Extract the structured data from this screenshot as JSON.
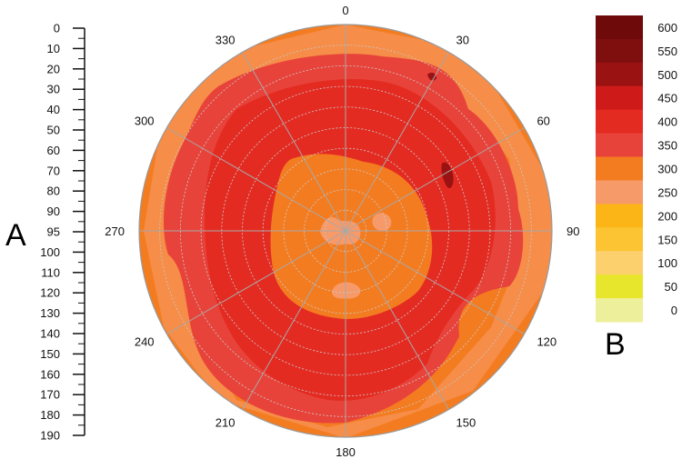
{
  "chart_data": {
    "type": "polar-contour",
    "panel_labels": {
      "left": "A",
      "right": "B"
    },
    "angular_axis": {
      "ticks": [
        "0",
        "30",
        "60",
        "90",
        "120",
        "150",
        "180",
        "210",
        "240",
        "270",
        "300",
        "330"
      ],
      "direction": "clockwise",
      "zero_at": "top"
    },
    "radial_axis": {
      "ticks": [
        "0",
        "10",
        "20",
        "30",
        "40",
        "50",
        "60",
        "70",
        "80",
        "90",
        "95",
        "100",
        "110",
        "120",
        "130",
        "140",
        "150",
        "160",
        "170",
        "180",
        "190"
      ],
      "range": [
        0,
        190
      ]
    },
    "colorbar": {
      "labels": [
        "600",
        "550",
        "500",
        "450",
        "400",
        "350",
        "300",
        "250",
        "200",
        "150",
        "100",
        "50",
        "0"
      ],
      "colors": [
        "#6e0a0a",
        "#7f0f0f",
        "#9b1212",
        "#cf1a1a",
        "#e42b22",
        "#e8433a",
        "#f47c20",
        "#f79a6a",
        "#fbb516",
        "#fcc433",
        "#fdd06e",
        "#e8e62c",
        "#eeef9a"
      ]
    }
  }
}
